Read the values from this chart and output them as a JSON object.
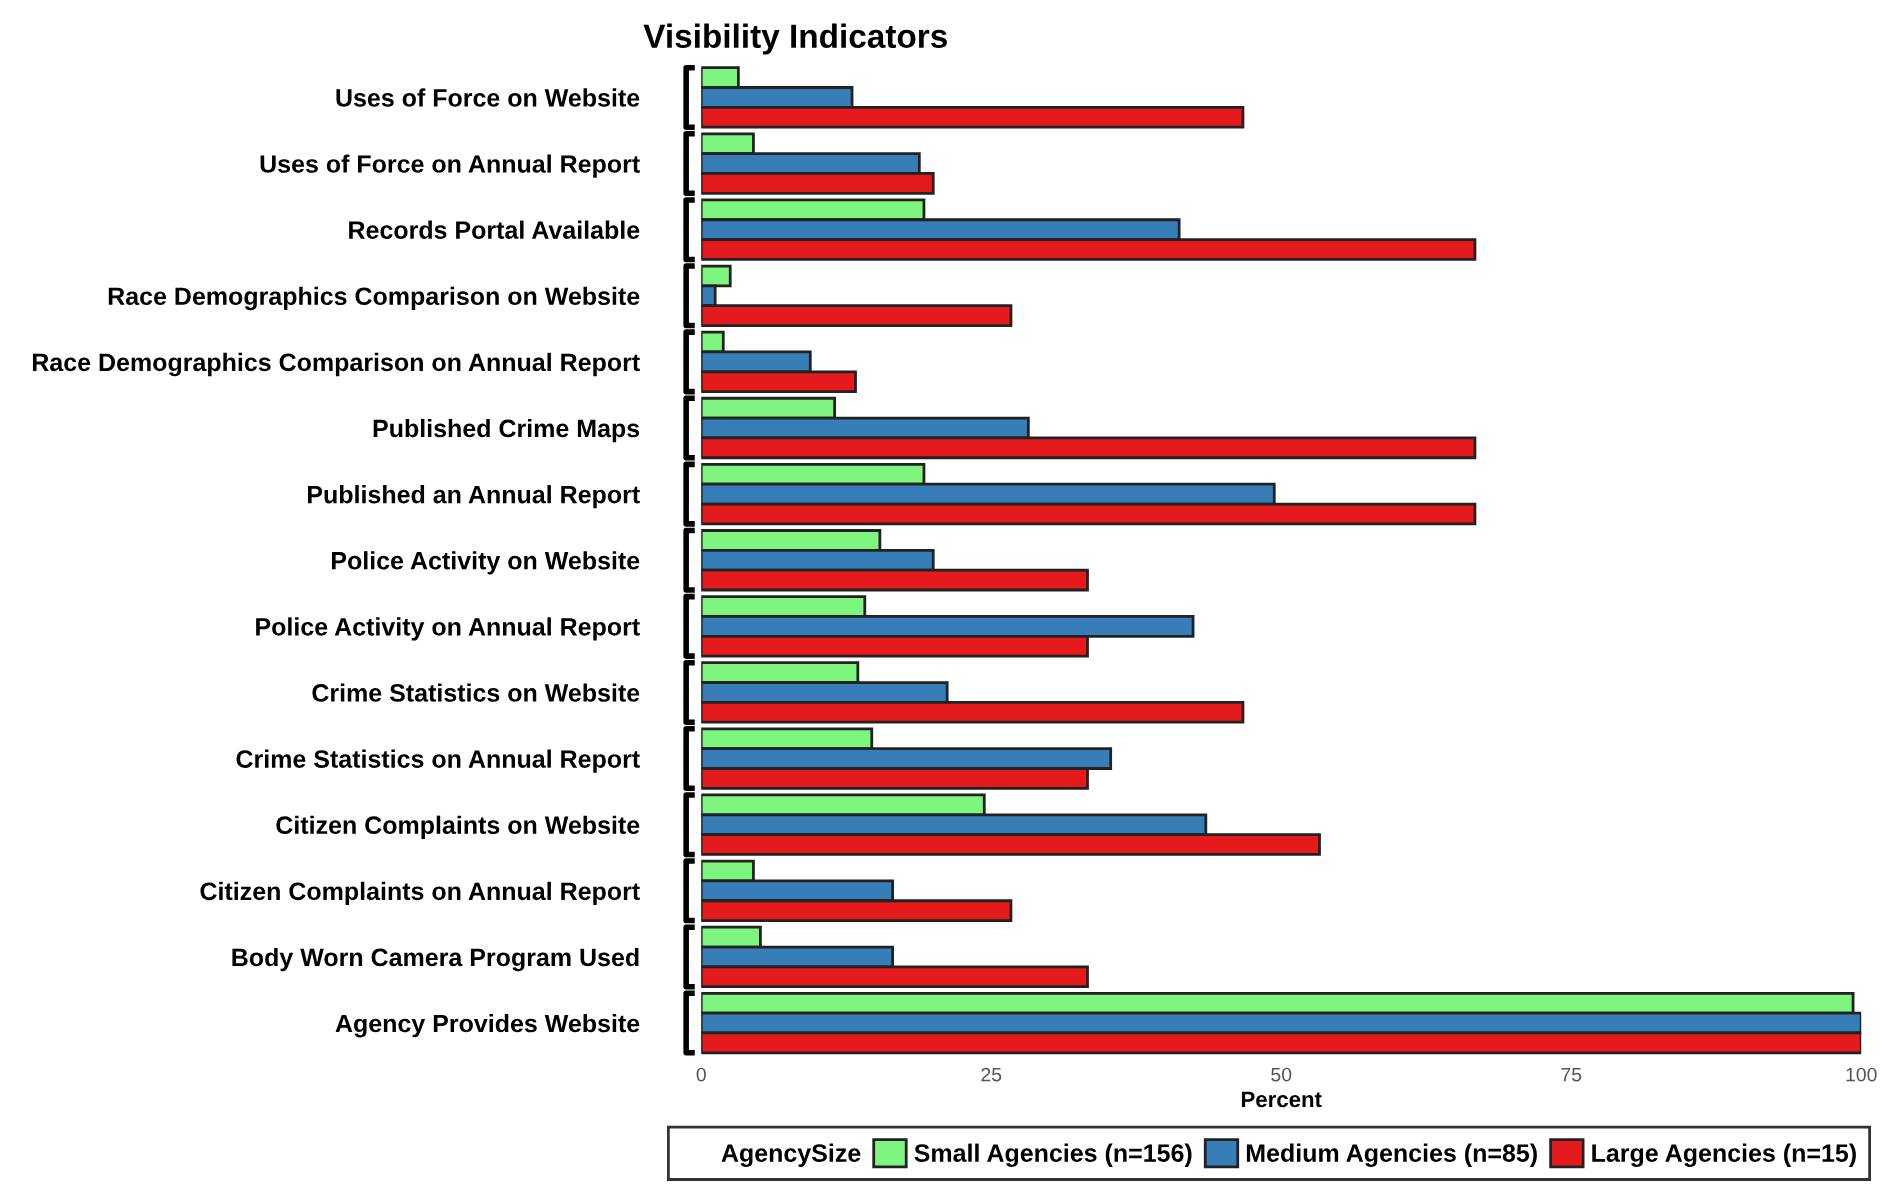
{
  "chart_data": {
    "type": "bar",
    "orientation": "horizontal",
    "title": "Visibility Indicators",
    "xlabel": "Percent",
    "legend_title": "AgencySize",
    "legend": "bottom",
    "categories": [
      "Uses of Force on Website",
      "Uses of Force on Annual Report",
      "Records Portal Available",
      "Race Demographics Comparison on Website",
      "Race Demographics Comparison on Annual Report",
      "Published Crime Maps",
      "Published an Annual Report",
      "Police Activity on Website",
      "Police Activity on Annual Report",
      "Crime Statistics on Website",
      "Crime Statistics on Annual Report",
      "Citizen Complaints on Website",
      "Citizen Complaints on Annual Report",
      "Body Worn Camera Program Used",
      "Agency Provides Website"
    ],
    "series": [
      {
        "name": "Small Agencies (n=156)",
        "color": "#7df57f",
        "values": [
          3.2,
          4.5,
          19.2,
          2.5,
          1.9,
          11.5,
          19.2,
          15.4,
          14.1,
          13.5,
          14.7,
          24.4,
          4.5,
          5.1,
          99.3
        ]
      },
      {
        "name": "Medium Agencies (n=85)",
        "color": "#377eb8",
        "values": [
          13.0,
          18.8,
          41.2,
          1.2,
          9.4,
          28.2,
          49.4,
          20.0,
          42.4,
          21.2,
          35.3,
          43.5,
          16.5,
          16.5,
          100
        ]
      },
      {
        "name": "Large Agencies (n=15)",
        "color": "#e41a1c",
        "values": [
          46.7,
          20.0,
          66.7,
          26.7,
          13.3,
          66.7,
          66.7,
          33.3,
          33.3,
          46.7,
          33.3,
          53.3,
          26.7,
          33.3,
          100
        ]
      }
    ],
    "xlim": [
      0,
      100
    ],
    "xticks": [
      0,
      25,
      50,
      75,
      100
    ],
    "grid": false
  }
}
